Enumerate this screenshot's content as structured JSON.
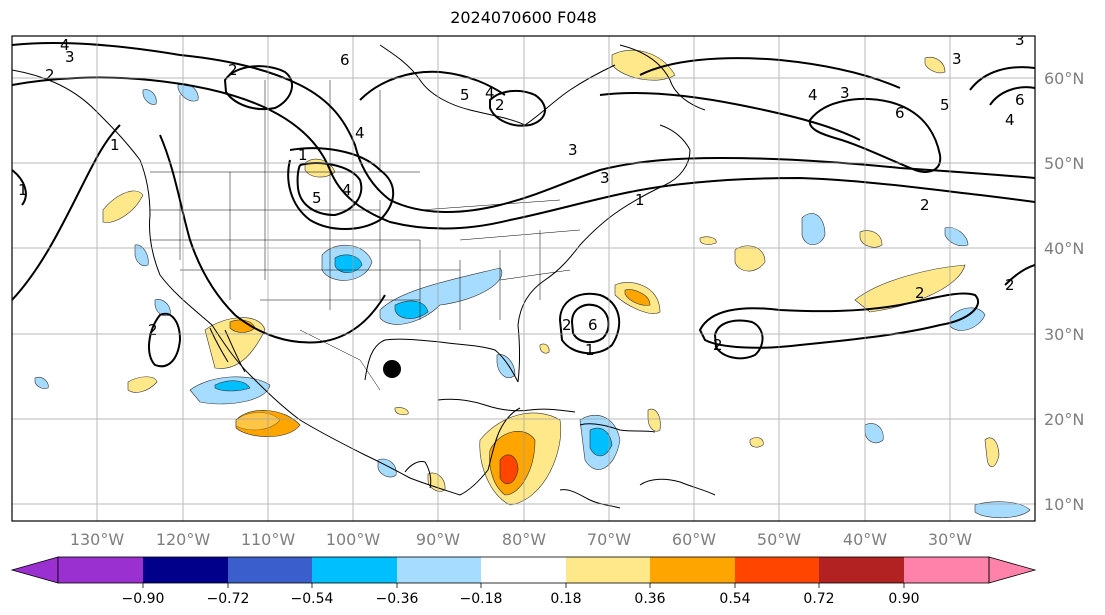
{
  "title": "2024070600 F048",
  "lon_labels": [
    "130°W",
    "120°W",
    "110°W",
    "100°W",
    "90°W",
    "80°W",
    "70°W",
    "60°W",
    "50°W",
    "40°W",
    "30°W"
  ],
  "lat_labels": [
    "60°N",
    "50°N",
    "40°N",
    "30°N",
    "20°N",
    "10°N"
  ],
  "colorbar": {
    "ticks": [
      "−0.90",
      "−0.72",
      "−0.54",
      "−0.36",
      "−0.18",
      "0.18",
      "0.36",
      "0.54",
      "0.72",
      "0.90"
    ],
    "colors": [
      "#9b30d0",
      "#00008b",
      "#3a5fcd",
      "#00bfff",
      "#a6dcff",
      "#ffffff",
      "#ffe88a",
      "#ffa500",
      "#ff4500",
      "#b22222",
      "#ff82ab"
    ]
  },
  "contour_labels": [
    "4",
    "3",
    "2",
    "2",
    "6",
    "5",
    "4",
    "2",
    "3",
    "4",
    "1",
    "5",
    "4",
    "1",
    "2",
    "3",
    "1",
    "3",
    "4",
    "3",
    "6",
    "5",
    "6",
    "4",
    "3",
    "2",
    "2",
    "2",
    "1",
    "2",
    "1",
    "2",
    "6"
  ],
  "legend_colors": {
    "neg_weak": "#a6dcff",
    "neg_mid": "#00bfff",
    "neg_strong": "#3a5fcd",
    "pos_weak": "#ffe88a",
    "pos_mid": "#ffa500",
    "pos_strong": "#ff4500"
  },
  "marker": "black-dot"
}
